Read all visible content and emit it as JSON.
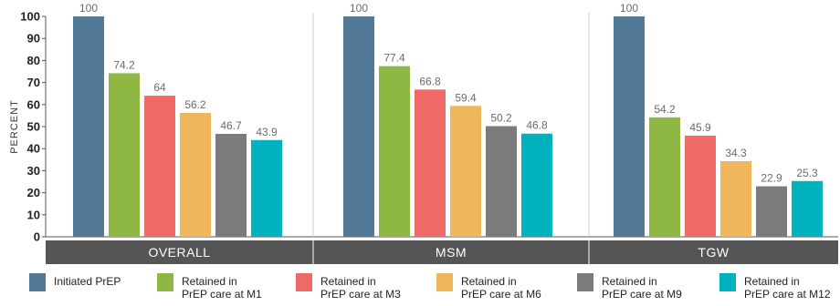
{
  "chart_data": {
    "type": "bar",
    "ylabel": "PERCENT",
    "ylim": [
      0,
      100
    ],
    "yticks": [
      0,
      10,
      20,
      30,
      40,
      50,
      60,
      70,
      80,
      90,
      100
    ],
    "categories": [
      "OVERALL",
      "MSM",
      "TGW"
    ],
    "series": [
      {
        "name": "Initiated PrEP",
        "name_lines": [
          "Initiated PrEP"
        ],
        "color": "#527a96",
        "values": [
          100,
          100,
          100
        ]
      },
      {
        "name": "Retained in PrEP care at M1",
        "name_lines": [
          "Retained in",
          "PrEP care at M1"
        ],
        "color": "#8fb744",
        "values": [
          74.2,
          77.4,
          54.2
        ]
      },
      {
        "name": "Retained in PrEP care at M3",
        "name_lines": [
          "Retained in",
          "PrEP care at M3"
        ],
        "color": "#ef6a66",
        "values": [
          64,
          66.8,
          45.9
        ]
      },
      {
        "name": "Retained in PrEP care at M6",
        "name_lines": [
          "Retained in",
          "PrEP care at M6"
        ],
        "color": "#f0b65c",
        "values": [
          56.2,
          59.4,
          34.3
        ]
      },
      {
        "name": "Retained in PrEP care at M9",
        "name_lines": [
          "Retained in",
          "PrEP care at M9"
        ],
        "color": "#7b7b7b",
        "values": [
          46.7,
          50.2,
          22.9
        ]
      },
      {
        "name": "Retained in PrEP care at M12",
        "name_lines": [
          "Retained in",
          "PrEP care at M12"
        ],
        "color": "#00b2bd",
        "values": [
          43.9,
          46.8,
          25.3
        ]
      }
    ],
    "category_band_color": "#555555",
    "legend_position": "bottom"
  }
}
